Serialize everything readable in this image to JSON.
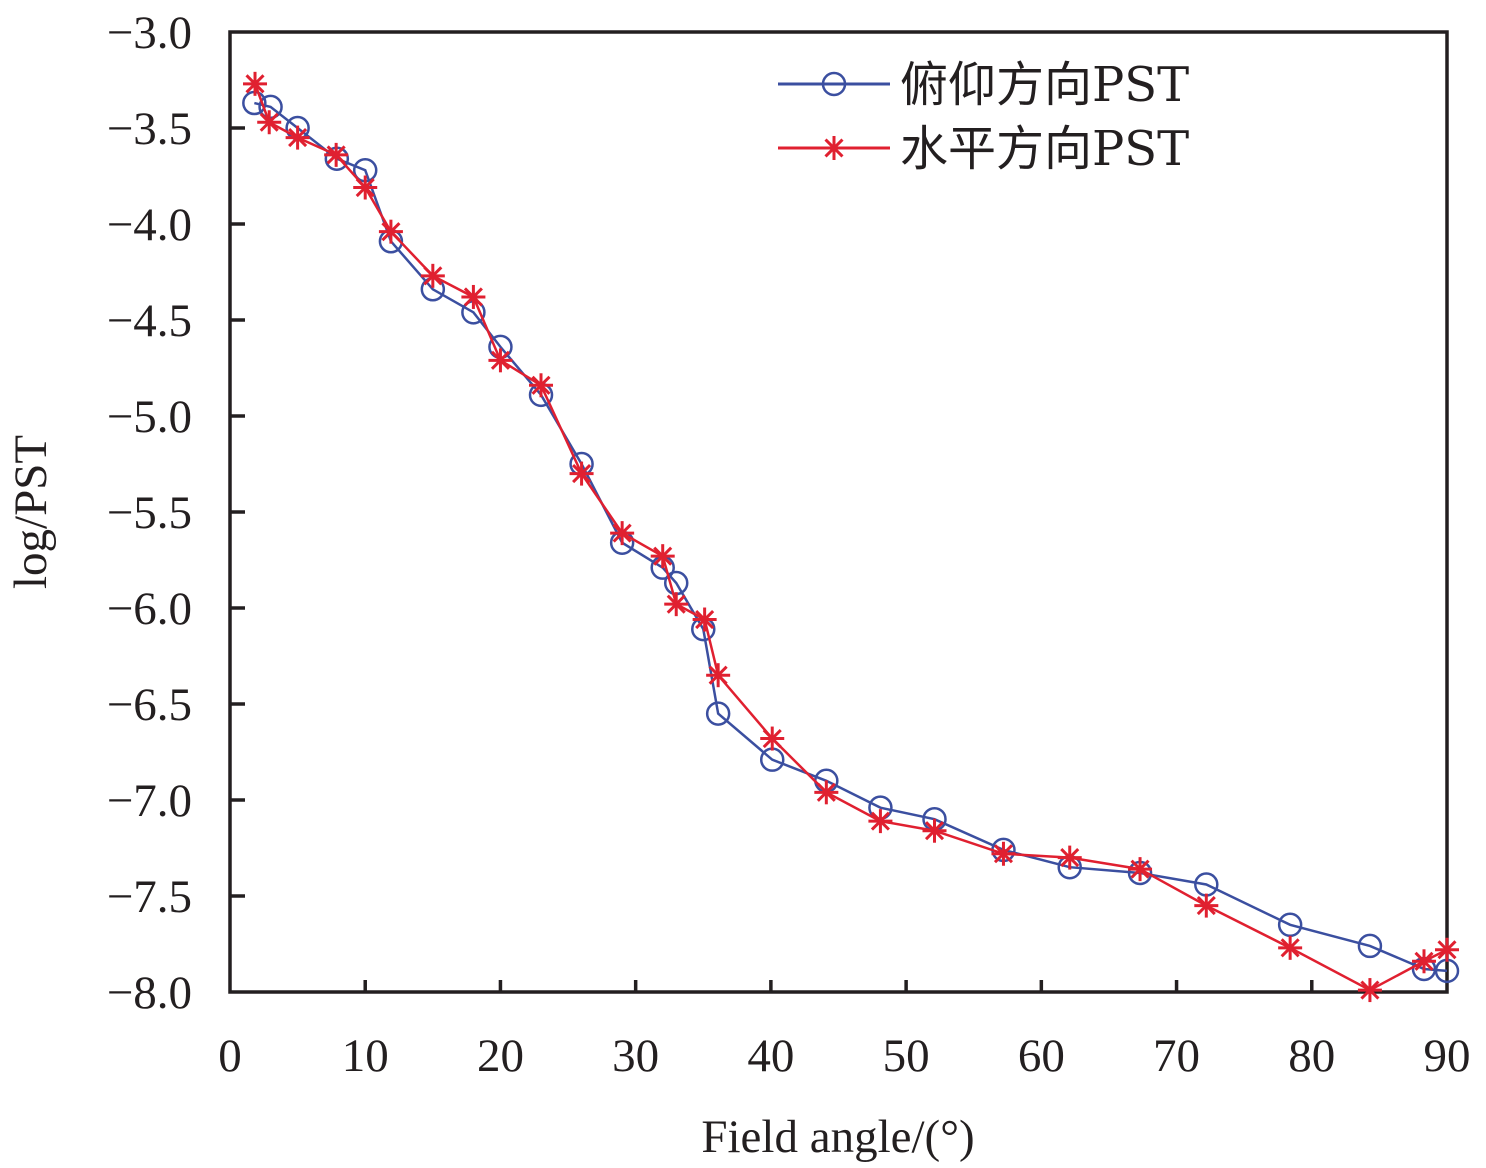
{
  "chart_data": {
    "type": "line",
    "title": "",
    "xlabel": "Field angle/(°)",
    "ylabel": "log/PST",
    "xlim": [
      0,
      90
    ],
    "ylim": [
      -8.0,
      -3.0
    ],
    "xticks": [
      0,
      10,
      20,
      30,
      40,
      50,
      60,
      70,
      80,
      90
    ],
    "xtick_labels": [
      "0",
      "10",
      "20",
      "30",
      "40",
      "50",
      "60",
      "70",
      "80",
      "90"
    ],
    "yticks": [
      -3.0,
      -3.5,
      -4.0,
      -4.5,
      -5.0,
      -5.5,
      -6.0,
      -6.5,
      -7.0,
      -7.5,
      -8.0
    ],
    "ytick_labels": [
      "−3.0",
      "−3.5",
      "−4.0",
      "−4.5",
      "−5.0",
      "−5.5",
      "−6.0",
      "−6.5",
      "−7.0",
      "−7.5",
      "−8.0"
    ],
    "grid": false,
    "legend_position": "top-right",
    "series": [
      {
        "name": "俯仰方向PST",
        "color": "#3b4fa0",
        "marker": "circle",
        "x": [
          1.8,
          3.0,
          5.0,
          7.9,
          10.0,
          11.9,
          15.0,
          18.0,
          20.0,
          23.0,
          26.0,
          29.0,
          32.0,
          33.0,
          35.0,
          36.1,
          40.1,
          44.1,
          48.1,
          52.1,
          57.2,
          62.1,
          67.3,
          72.2,
          78.4,
          84.3,
          88.3,
          90.0
        ],
        "y": [
          -3.37,
          -3.39,
          -3.5,
          -3.66,
          -3.72,
          -4.09,
          -4.34,
          -4.46,
          -4.64,
          -4.89,
          -5.25,
          -5.66,
          -5.79,
          -5.87,
          -6.11,
          -6.55,
          -6.79,
          -6.9,
          -7.04,
          -7.1,
          -7.26,
          -7.35,
          -7.38,
          -7.44,
          -7.65,
          -7.76,
          -7.88,
          -7.89
        ]
      },
      {
        "name": "水平方向PST",
        "color": "#e02030",
        "marker": "asterisk",
        "x": [
          1.85,
          2.9,
          5.0,
          7.85,
          10.0,
          11.9,
          15.0,
          18.0,
          20.0,
          23.0,
          26.0,
          29.0,
          32.0,
          33.0,
          35.1,
          36.1,
          40.1,
          44.1,
          48.1,
          52.1,
          57.2,
          62.1,
          67.3,
          72.2,
          78.4,
          84.3,
          88.3,
          90.0
        ],
        "y": [
          -3.27,
          -3.47,
          -3.55,
          -3.64,
          -3.81,
          -4.04,
          -4.27,
          -4.38,
          -4.71,
          -4.84,
          -5.3,
          -5.61,
          -5.73,
          -5.98,
          -6.06,
          -6.35,
          -6.68,
          -6.96,
          -7.11,
          -7.16,
          -7.28,
          -7.3,
          -7.36,
          -7.55,
          -7.77,
          -7.99,
          -7.84,
          -7.78
        ]
      }
    ]
  }
}
